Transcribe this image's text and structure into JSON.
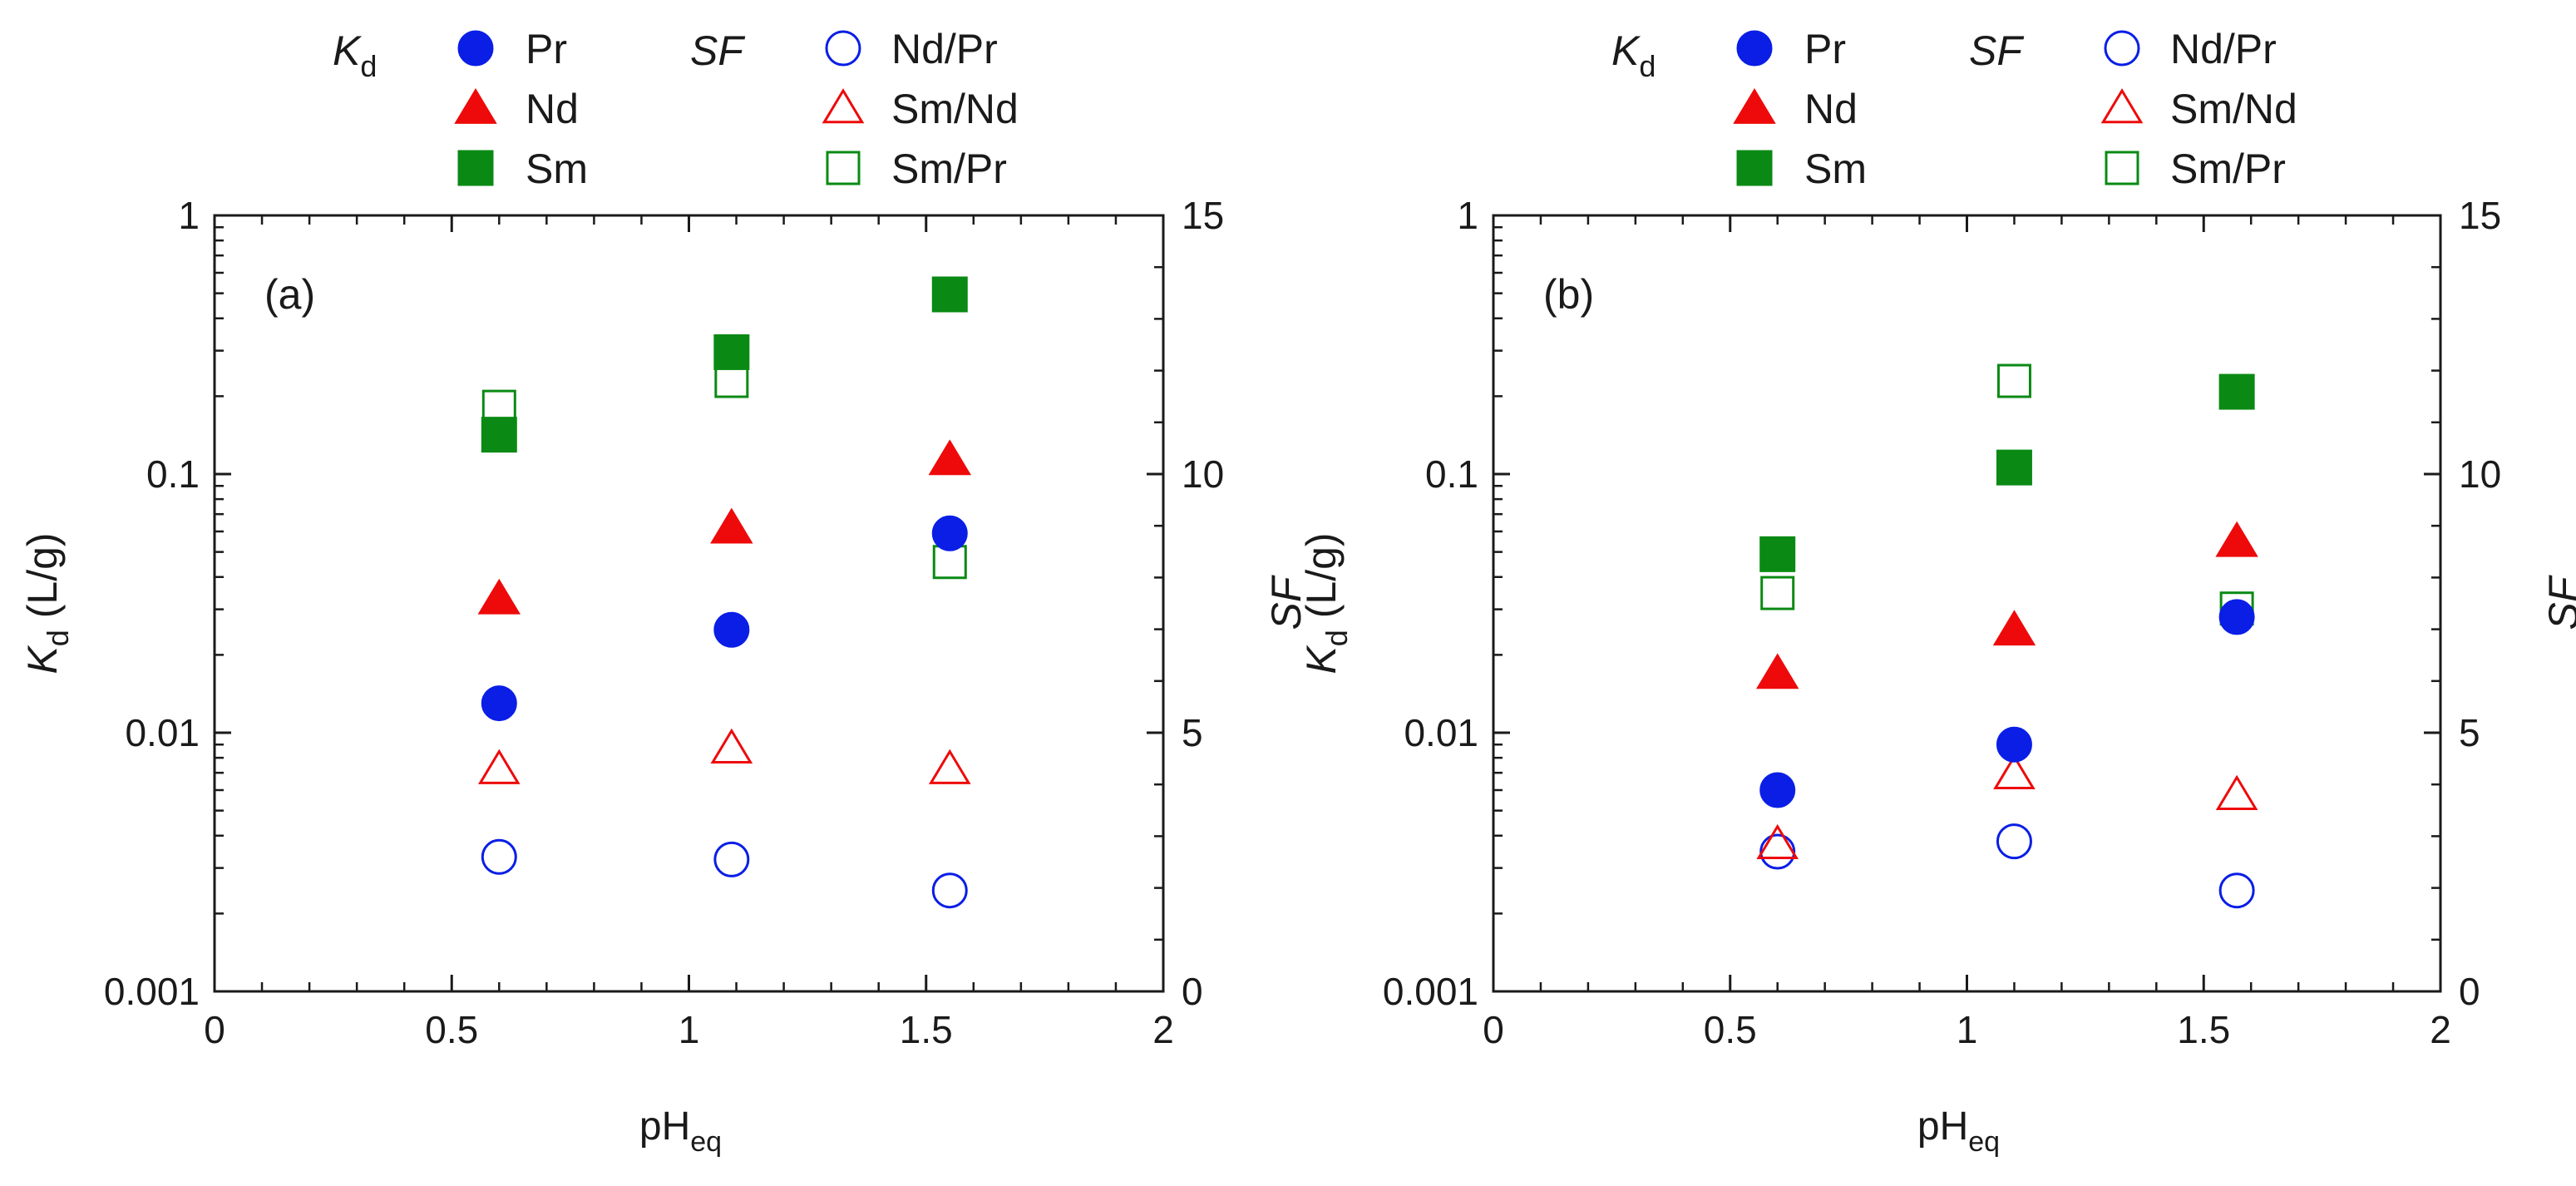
{
  "chart_data": [
    {
      "panel_label": "(a)",
      "type": "scatter",
      "xlabel": {
        "main": "pH",
        "sub": "eq"
      },
      "xlim": [
        0,
        2
      ],
      "xticks": [
        0,
        0.5,
        1,
        1.5,
        2
      ],
      "xtick_labels": [
        "0",
        "0.5",
        "1",
        "1.5",
        "2"
      ],
      "left_axis": {
        "label_main": "K",
        "label_sub": "d",
        "label_unit": " (L/g)",
        "scale": "log",
        "ylim": [
          0.001,
          1
        ],
        "ticks": [
          0.001,
          0.01,
          0.1,
          1
        ],
        "tick_labels": [
          "0.001",
          "0.01",
          "0.1",
          "1"
        ]
      },
      "right_axis": {
        "label": "SF",
        "scale": "linear",
        "ylim": [
          0,
          15
        ],
        "ticks": [
          0,
          5,
          10,
          15
        ],
        "tick_labels": [
          "0",
          "5",
          "10",
          "15"
        ]
      },
      "series": [
        {
          "name": "Pr",
          "group": "Kd",
          "axis": "left",
          "marker": "circle",
          "filled": true,
          "color": "#0a1ee6",
          "x": [
            0.6,
            1.09,
            1.55
          ],
          "y": [
            0.013,
            0.025,
            0.059
          ]
        },
        {
          "name": "Nd",
          "group": "Kd",
          "axis": "left",
          "marker": "triangle",
          "filled": true,
          "color": "#ee0a0a",
          "x": [
            0.6,
            1.09,
            1.55
          ],
          "y": [
            0.033,
            0.062,
            0.114
          ]
        },
        {
          "name": "Sm",
          "group": "Kd",
          "axis": "left",
          "marker": "square",
          "filled": true,
          "color": "#0a8a14",
          "x": [
            0.6,
            1.09,
            1.55
          ],
          "y": [
            0.142,
            0.296,
            0.495
          ]
        },
        {
          "name": "Nd/Pr",
          "group": "SF",
          "axis": "right",
          "marker": "circle",
          "filled": false,
          "color": "#0a1ee6",
          "x": [
            0.6,
            1.09,
            1.55
          ],
          "y": [
            2.6,
            2.55,
            1.95
          ]
        },
        {
          "name": "Sm/Nd",
          "group": "SF",
          "axis": "right",
          "marker": "triangle",
          "filled": false,
          "color": "#ee0a0a",
          "x": [
            0.6,
            1.09,
            1.55
          ],
          "y": [
            4.3,
            4.7,
            4.3
          ]
        },
        {
          "name": "Sm/Pr",
          "group": "SF",
          "axis": "right",
          "marker": "square",
          "filled": false,
          "color": "#0a8a14",
          "x": [
            0.6,
            1.09,
            1.55
          ],
          "y": [
            11.3,
            11.8,
            8.3
          ]
        }
      ]
    },
    {
      "panel_label": "(b)",
      "type": "scatter",
      "xlabel": {
        "main": "pH",
        "sub": "eq"
      },
      "xlim": [
        0,
        2
      ],
      "xticks": [
        0,
        0.5,
        1,
        1.5,
        2
      ],
      "xtick_labels": [
        "0",
        "0.5",
        "1",
        "1.5",
        "2"
      ],
      "left_axis": {
        "label_main": "K",
        "label_sub": "d",
        "label_unit": " (L/g)",
        "scale": "log",
        "ylim": [
          0.001,
          1
        ],
        "ticks": [
          0.001,
          0.01,
          0.1,
          1
        ],
        "tick_labels": [
          "0.001",
          "0.01",
          "0.1",
          "1"
        ]
      },
      "right_axis": {
        "label": "SF",
        "scale": "linear",
        "ylim": [
          0,
          15
        ],
        "ticks": [
          0,
          5,
          10,
          15
        ],
        "tick_labels": [
          "0",
          "5",
          "10",
          "15"
        ]
      },
      "series": [
        {
          "name": "Pr",
          "group": "Kd",
          "axis": "left",
          "marker": "circle",
          "filled": true,
          "color": "#0a1ee6",
          "x": [
            0.6,
            1.1,
            1.57
          ],
          "y": [
            0.006,
            0.009,
            0.028
          ]
        },
        {
          "name": "Nd",
          "group": "Kd",
          "axis": "left",
          "marker": "triangle",
          "filled": true,
          "color": "#ee0a0a",
          "x": [
            0.6,
            1.1,
            1.57
          ],
          "y": [
            0.017,
            0.025,
            0.055
          ]
        },
        {
          "name": "Sm",
          "group": "Kd",
          "axis": "left",
          "marker": "square",
          "filled": true,
          "color": "#0a8a14",
          "x": [
            0.6,
            1.1,
            1.57
          ],
          "y": [
            0.049,
            0.106,
            0.208
          ]
        },
        {
          "name": "Nd/Pr",
          "group": "SF",
          "axis": "right",
          "marker": "circle",
          "filled": false,
          "color": "#0a1ee6",
          "x": [
            0.6,
            1.1,
            1.57
          ],
          "y": [
            2.7,
            2.9,
            1.95
          ]
        },
        {
          "name": "Sm/Nd",
          "group": "SF",
          "axis": "right",
          "marker": "triangle",
          "filled": false,
          "color": "#ee0a0a",
          "x": [
            0.6,
            1.1,
            1.57
          ],
          "y": [
            2.85,
            4.2,
            3.8
          ]
        },
        {
          "name": "Sm/Pr",
          "group": "SF",
          "axis": "right",
          "marker": "square",
          "filled": false,
          "color": "#0a8a14",
          "x": [
            0.6,
            1.1,
            1.57
          ],
          "y": [
            7.7,
            11.8,
            7.4
          ]
        }
      ]
    }
  ],
  "legend": {
    "kd_title_main": "K",
    "kd_title_sub": "d",
    "sf_title": "SF",
    "kd_entries": [
      "Pr",
      "Nd",
      "Sm"
    ],
    "sf_entries": [
      "Nd/Pr",
      "Sm/Nd",
      "Sm/Pr"
    ]
  }
}
